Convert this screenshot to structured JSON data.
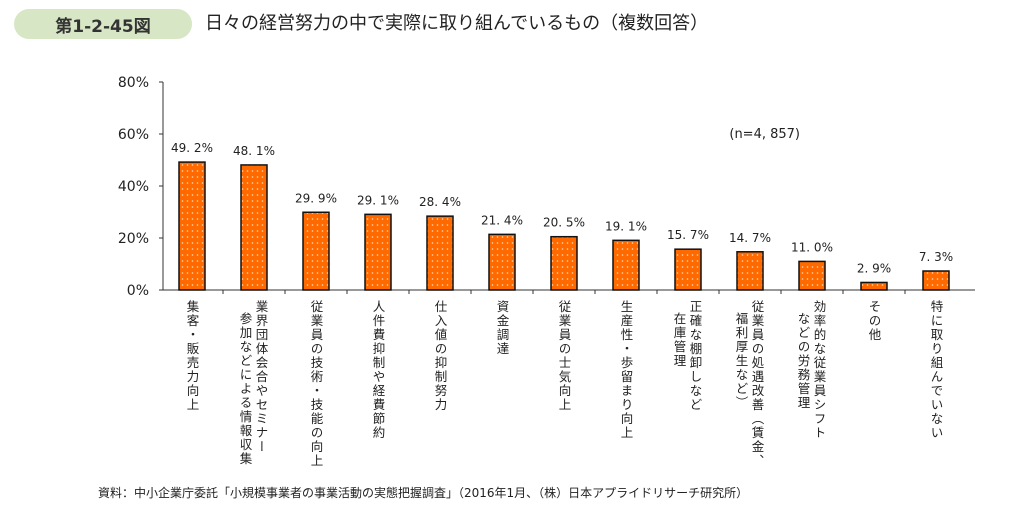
{
  "header": {
    "figure_no": "第1-2-45図",
    "title": "日々の経営努力の中で実際に取り組んでいるもの（複数回答）"
  },
  "chart_data": {
    "type": "bar",
    "title": "日々の経営努力の中で実際に取り組んでいるもの（複数回答）",
    "annotation": "(n=4, 857)",
    "categories": [
      "集客・販売力向上",
      "業界団体会合やセミナー|参加などによる情報収集",
      "従業員の技術・技能の向上",
      "人件費抑制や経費節約",
      "仕入値の抑制努力",
      "資金調達",
      "従業員の士気向上",
      "生産性・歩留まり向上",
      "正確な棚卸しなど|在庫管理",
      "従業員の処遇改善（賃金、|福利厚生など）",
      "効率的な従業員シフト|などの労務管理",
      "その他",
      "特に取り組んでいない"
    ],
    "values": [
      49.2,
      48.1,
      29.9,
      29.1,
      28.4,
      21.4,
      20.5,
      19.1,
      15.7,
      14.7,
      11.0,
      2.9,
      7.3
    ],
    "data_labels": [
      "49. 2%",
      "48. 1%",
      "29. 9%",
      "29. 1%",
      "28. 4%",
      "21. 4%",
      "20. 5%",
      "19. 1%",
      "15. 7%",
      "14. 7%",
      "11. 0%",
      "2. 9%",
      "7. 3%"
    ],
    "yticks": [
      "0%",
      "20%",
      "40%",
      "60%",
      "80%"
    ],
    "ylim": [
      0,
      80
    ],
    "grid": false,
    "bar_color": "#ff6a00"
  },
  "footer": {
    "source": "資料：中小企業庁委託「小規模事業者の事業活動の実態把握調査」（2016年1月、（株）日本アプライドリサーチ研究所）"
  }
}
